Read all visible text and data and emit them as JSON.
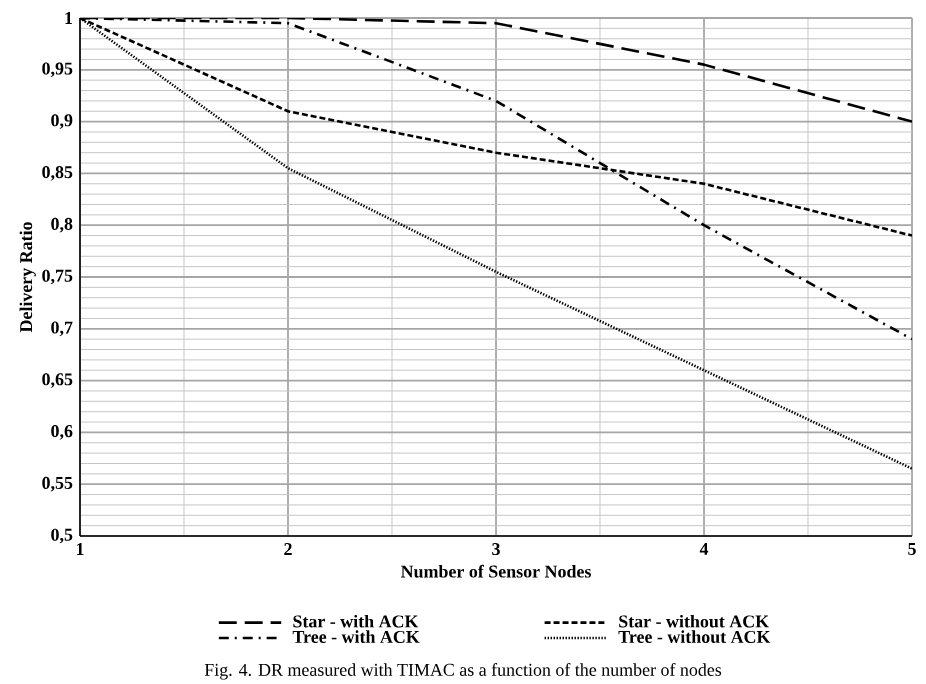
{
  "chart_data": {
    "type": "line",
    "xlabel": "Number of Sensor Nodes",
    "ylabel": "Delivery Ratio",
    "x": [
      1,
      2,
      3,
      4,
      5
    ],
    "series": [
      {
        "name": "Star - with ACK",
        "color": "#000000",
        "line_style": "long dashed",
        "values": [
          1,
          1,
          0.995,
          0.955,
          0.9
        ]
      },
      {
        "name": "Star - without ACK",
        "color": "#000000",
        "line_style": "dashed",
        "values": [
          1,
          0.91,
          0.87,
          0.84,
          0.79
        ]
      },
      {
        "name": "Tree - with ACK",
        "color": "#000000",
        "line_style": "dash dot",
        "values": [
          1,
          0.995,
          0.92,
          0.8,
          0.69
        ]
      },
      {
        "name": "Tree - without ACK",
        "color": "#000000",
        "line_style": "dotted",
        "values": [
          1,
          0.855,
          0.755,
          0.66,
          0.565
        ]
      }
    ],
    "xlim": [
      1,
      5
    ],
    "xticks": [
      1,
      2,
      3,
      4,
      5
    ],
    "ylim": [
      0.5,
      1
    ],
    "yticks": [
      {
        "value": 0.5,
        "label": "0,5"
      },
      {
        "value": 0.55,
        "label": "0,55"
      },
      {
        "value": 0.6,
        "label": "0,6"
      },
      {
        "value": 0.65,
        "label": "0,65"
      },
      {
        "value": 0.7,
        "label": "0,7"
      },
      {
        "value": 0.75,
        "label": "0,75"
      },
      {
        "value": 0.8,
        "label": "0,8"
      },
      {
        "value": 0.85,
        "label": "0,85"
      },
      {
        "value": 0.9,
        "label": "0,9"
      },
      {
        "value": 0.95,
        "label": "0,95"
      },
      {
        "value": 1,
        "label": "1"
      }
    ],
    "grid": true,
    "legend": "bottom",
    "marker": "none",
    "annotations": [
      "Fig. 4.  DR measured with TIMAC as a function of the number of nodes"
    ]
  }
}
